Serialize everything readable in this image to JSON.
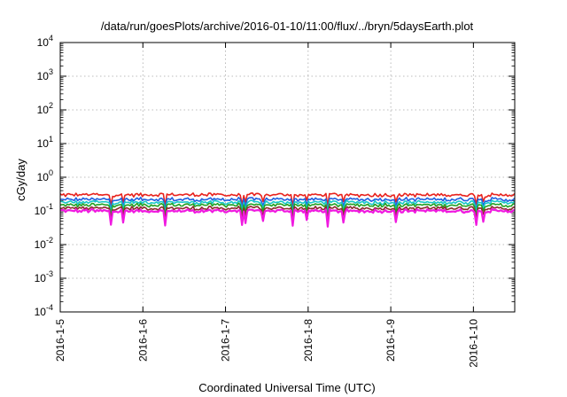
{
  "chart_data": {
    "type": "line",
    "title": "/data/run/goesPlots/archive/2016-01-10/11:00/flux/../bryn/5daysEarth.plot",
    "xlabel": "Coordinated Universal Time (UTC)",
    "ylabel": "cGy/day",
    "yscale": "log",
    "ylim": [
      0.0001,
      10000
    ],
    "xlim": [
      "2016-01-05 00:00",
      "2016-01-10 12:00"
    ],
    "grid": true,
    "x_ticks": [
      "2016-1-5",
      "2016-1-6",
      "2016-1-7",
      "2016-1-8",
      "2016-1-9",
      "2016-1-10"
    ],
    "y_ticks": [
      {
        "base": "10",
        "exp": "-4"
      },
      {
        "base": "10",
        "exp": "-3"
      },
      {
        "base": "10",
        "exp": "-2"
      },
      {
        "base": "10",
        "exp": "-1"
      },
      {
        "base": "10",
        "exp": "0"
      },
      {
        "base": "10",
        "exp": "1"
      },
      {
        "base": "10",
        "exp": "2"
      },
      {
        "base": "10",
        "exp": "3"
      },
      {
        "base": "10",
        "exp": "4"
      }
    ],
    "series": [
      {
        "color": "#e8221d",
        "level": 0.3
      },
      {
        "color": "#1f5fe0",
        "level": 0.22
      },
      {
        "color": "#17c8c8",
        "level": 0.18
      },
      {
        "color": "#23a123",
        "level": 0.15
      },
      {
        "color": "#8a2b2b",
        "level": 0.12
      },
      {
        "color": "#f019e0",
        "level": 0.1
      }
    ]
  }
}
